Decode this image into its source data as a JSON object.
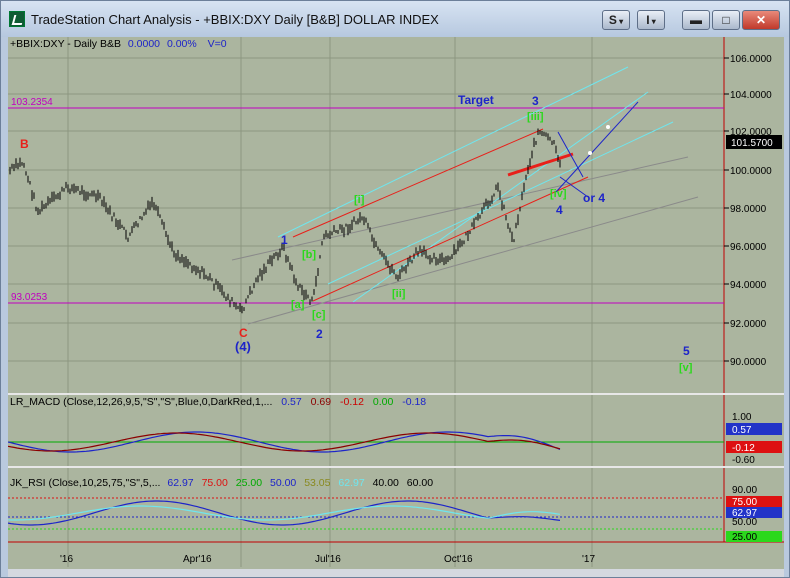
{
  "window": {
    "title": "TradeStation Chart Analysis - +BBIX:DXY Daily [B&B] DOLLAR INDEX",
    "btn_s": "S",
    "btn_i": "I",
    "btn_min": "▬",
    "btn_max": "□",
    "btn_close": "✕"
  },
  "price_pane": {
    "legend": {
      "symbol": "+BBIX:DXY - Daily  B&B",
      "change": "0.0000",
      "pct": "0.00%",
      "vol": "V=0"
    },
    "ticks": [
      "106.0000",
      "104.0000",
      "102.0000",
      "100.0000",
      "98.0000",
      "96.0000",
      "94.0000",
      "92.0000",
      "90.0000"
    ],
    "last_price": "101.5700",
    "hline_high": "103.2354",
    "hline_low": "93.0253",
    "annotations": {
      "target": "Target",
      "wave_3": "3",
      "wave_iii": "[iii]",
      "wave_4": "4",
      "or4": "or 4",
      "wave_iv": "[iv]",
      "wave_B": "B",
      "wave_C": "C",
      "wave_4_paren": "(4)",
      "wave_1": "1",
      "wave_2": "2",
      "wave_a": "[a]",
      "wave_b": "[b]",
      "wave_c": "[c]",
      "wave_i": "[i]",
      "wave_ii": "[ii]",
      "wave_5": "5",
      "wave_v": "[v]"
    }
  },
  "macd_pane": {
    "legend": {
      "name": "LR_MACD (Close,12,26,9,5,\"S\",\"S\",Blue,0,DarkRed,1,...",
      "v1": "0.57",
      "v2": "0.69",
      "v3": "-0.12",
      "v4": "0.00",
      "v5": "-0.18"
    },
    "ticks": [
      "1.00",
      "0.57",
      "-0.12",
      "-0.60"
    ]
  },
  "rsi_pane": {
    "legend": {
      "name": "JK_RSI (Close,10,25,75,\"S\",5,...",
      "v1": "62.97",
      "v2": "75.00",
      "v3": "25.00",
      "v4": "50.00",
      "v5": "53.05",
      "v6": "62.97",
      "v7": "40.00",
      "v8": "60.00"
    },
    "ticks": [
      "90.00",
      "75.00",
      "62.97",
      "50.00",
      "25.00"
    ]
  },
  "x_axis": {
    "labels": [
      "'16",
      "Apr'16",
      "Jul'16",
      "Oct'16",
      "'17"
    ]
  },
  "colors": {
    "chart_bg": "#abb59f",
    "price_bars": "#000000",
    "channel_red": "#e8201a",
    "channel_cyan": "#6fe6ee",
    "hline_magenta": "#c000c0",
    "wave_blue": "#1d24c9",
    "wave_green": "#2bd81c"
  }
}
